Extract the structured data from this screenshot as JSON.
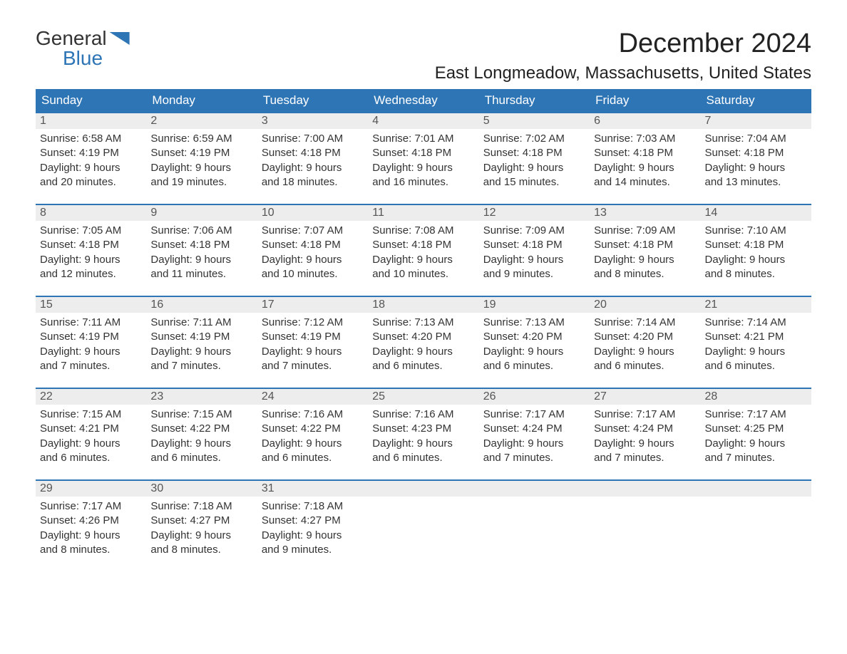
{
  "logo": {
    "line1": "General",
    "line2": "Blue"
  },
  "title": "December 2024",
  "location": "East Longmeadow, Massachusetts, United States",
  "dayHeaders": [
    "Sunday",
    "Monday",
    "Tuesday",
    "Wednesday",
    "Thursday",
    "Friday",
    "Saturday"
  ],
  "colors": {
    "headerBg": "#2e75b6",
    "dayBarBg": "#ededed",
    "accentBlue": "#2e75b6"
  },
  "weeks": [
    [
      {
        "n": "1",
        "sr": "Sunrise: 6:58 AM",
        "ss": "Sunset: 4:19 PM",
        "d1": "Daylight: 9 hours",
        "d2": "and 20 minutes."
      },
      {
        "n": "2",
        "sr": "Sunrise: 6:59 AM",
        "ss": "Sunset: 4:19 PM",
        "d1": "Daylight: 9 hours",
        "d2": "and 19 minutes."
      },
      {
        "n": "3",
        "sr": "Sunrise: 7:00 AM",
        "ss": "Sunset: 4:18 PM",
        "d1": "Daylight: 9 hours",
        "d2": "and 18 minutes."
      },
      {
        "n": "4",
        "sr": "Sunrise: 7:01 AM",
        "ss": "Sunset: 4:18 PM",
        "d1": "Daylight: 9 hours",
        "d2": "and 16 minutes."
      },
      {
        "n": "5",
        "sr": "Sunrise: 7:02 AM",
        "ss": "Sunset: 4:18 PM",
        "d1": "Daylight: 9 hours",
        "d2": "and 15 minutes."
      },
      {
        "n": "6",
        "sr": "Sunrise: 7:03 AM",
        "ss": "Sunset: 4:18 PM",
        "d1": "Daylight: 9 hours",
        "d2": "and 14 minutes."
      },
      {
        "n": "7",
        "sr": "Sunrise: 7:04 AM",
        "ss": "Sunset: 4:18 PM",
        "d1": "Daylight: 9 hours",
        "d2": "and 13 minutes."
      }
    ],
    [
      {
        "n": "8",
        "sr": "Sunrise: 7:05 AM",
        "ss": "Sunset: 4:18 PM",
        "d1": "Daylight: 9 hours",
        "d2": "and 12 minutes."
      },
      {
        "n": "9",
        "sr": "Sunrise: 7:06 AM",
        "ss": "Sunset: 4:18 PM",
        "d1": "Daylight: 9 hours",
        "d2": "and 11 minutes."
      },
      {
        "n": "10",
        "sr": "Sunrise: 7:07 AM",
        "ss": "Sunset: 4:18 PM",
        "d1": "Daylight: 9 hours",
        "d2": "and 10 minutes."
      },
      {
        "n": "11",
        "sr": "Sunrise: 7:08 AM",
        "ss": "Sunset: 4:18 PM",
        "d1": "Daylight: 9 hours",
        "d2": "and 10 minutes."
      },
      {
        "n": "12",
        "sr": "Sunrise: 7:09 AM",
        "ss": "Sunset: 4:18 PM",
        "d1": "Daylight: 9 hours",
        "d2": "and 9 minutes."
      },
      {
        "n": "13",
        "sr": "Sunrise: 7:09 AM",
        "ss": "Sunset: 4:18 PM",
        "d1": "Daylight: 9 hours",
        "d2": "and 8 minutes."
      },
      {
        "n": "14",
        "sr": "Sunrise: 7:10 AM",
        "ss": "Sunset: 4:18 PM",
        "d1": "Daylight: 9 hours",
        "d2": "and 8 minutes."
      }
    ],
    [
      {
        "n": "15",
        "sr": "Sunrise: 7:11 AM",
        "ss": "Sunset: 4:19 PM",
        "d1": "Daylight: 9 hours",
        "d2": "and 7 minutes."
      },
      {
        "n": "16",
        "sr": "Sunrise: 7:11 AM",
        "ss": "Sunset: 4:19 PM",
        "d1": "Daylight: 9 hours",
        "d2": "and 7 minutes."
      },
      {
        "n": "17",
        "sr": "Sunrise: 7:12 AM",
        "ss": "Sunset: 4:19 PM",
        "d1": "Daylight: 9 hours",
        "d2": "and 7 minutes."
      },
      {
        "n": "18",
        "sr": "Sunrise: 7:13 AM",
        "ss": "Sunset: 4:20 PM",
        "d1": "Daylight: 9 hours",
        "d2": "and 6 minutes."
      },
      {
        "n": "19",
        "sr": "Sunrise: 7:13 AM",
        "ss": "Sunset: 4:20 PM",
        "d1": "Daylight: 9 hours",
        "d2": "and 6 minutes."
      },
      {
        "n": "20",
        "sr": "Sunrise: 7:14 AM",
        "ss": "Sunset: 4:20 PM",
        "d1": "Daylight: 9 hours",
        "d2": "and 6 minutes."
      },
      {
        "n": "21",
        "sr": "Sunrise: 7:14 AM",
        "ss": "Sunset: 4:21 PM",
        "d1": "Daylight: 9 hours",
        "d2": "and 6 minutes."
      }
    ],
    [
      {
        "n": "22",
        "sr": "Sunrise: 7:15 AM",
        "ss": "Sunset: 4:21 PM",
        "d1": "Daylight: 9 hours",
        "d2": "and 6 minutes."
      },
      {
        "n": "23",
        "sr": "Sunrise: 7:15 AM",
        "ss": "Sunset: 4:22 PM",
        "d1": "Daylight: 9 hours",
        "d2": "and 6 minutes."
      },
      {
        "n": "24",
        "sr": "Sunrise: 7:16 AM",
        "ss": "Sunset: 4:22 PM",
        "d1": "Daylight: 9 hours",
        "d2": "and 6 minutes."
      },
      {
        "n": "25",
        "sr": "Sunrise: 7:16 AM",
        "ss": "Sunset: 4:23 PM",
        "d1": "Daylight: 9 hours",
        "d2": "and 6 minutes."
      },
      {
        "n": "26",
        "sr": "Sunrise: 7:17 AM",
        "ss": "Sunset: 4:24 PM",
        "d1": "Daylight: 9 hours",
        "d2": "and 7 minutes."
      },
      {
        "n": "27",
        "sr": "Sunrise: 7:17 AM",
        "ss": "Sunset: 4:24 PM",
        "d1": "Daylight: 9 hours",
        "d2": "and 7 minutes."
      },
      {
        "n": "28",
        "sr": "Sunrise: 7:17 AM",
        "ss": "Sunset: 4:25 PM",
        "d1": "Daylight: 9 hours",
        "d2": "and 7 minutes."
      }
    ],
    [
      {
        "n": "29",
        "sr": "Sunrise: 7:17 AM",
        "ss": "Sunset: 4:26 PM",
        "d1": "Daylight: 9 hours",
        "d2": "and 8 minutes."
      },
      {
        "n": "30",
        "sr": "Sunrise: 7:18 AM",
        "ss": "Sunset: 4:27 PM",
        "d1": "Daylight: 9 hours",
        "d2": "and 8 minutes."
      },
      {
        "n": "31",
        "sr": "Sunrise: 7:18 AM",
        "ss": "Sunset: 4:27 PM",
        "d1": "Daylight: 9 hours",
        "d2": "and 9 minutes."
      },
      null,
      null,
      null,
      null
    ]
  ]
}
